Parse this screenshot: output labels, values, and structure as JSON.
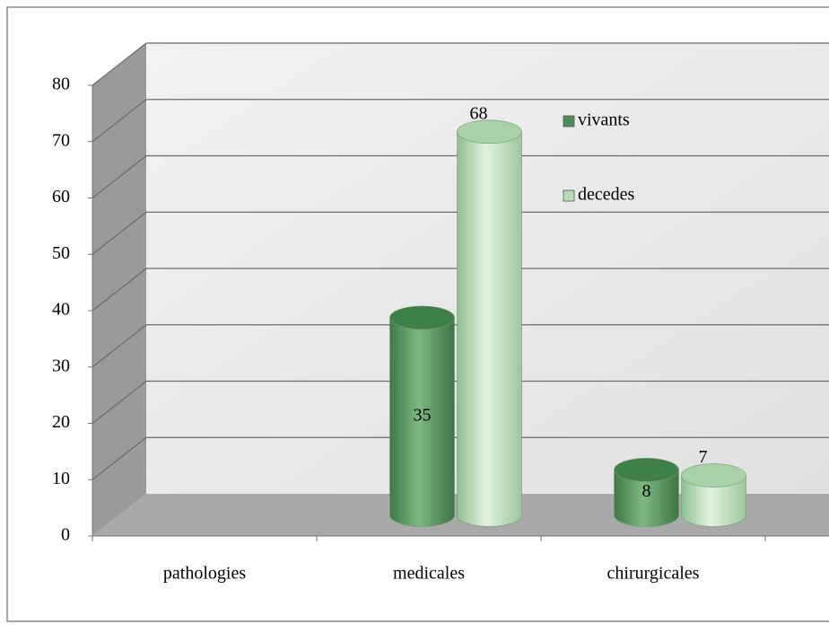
{
  "chart_data": {
    "type": "bar3d",
    "categories": [
      "pathologies",
      "medicales",
      "chirurgicales"
    ],
    "series": [
      {
        "name": "vivants",
        "color": "#4f8f57",
        "values": [
          null,
          35,
          8
        ]
      },
      {
        "name": "decedes",
        "color": "#b5dbb5",
        "values": [
          null,
          68,
          7
        ]
      }
    ],
    "ylim": [
      0,
      80
    ],
    "yticks": [
      0,
      10,
      20,
      30,
      40,
      50,
      60,
      70,
      80
    ],
    "grid": true,
    "legend": "top-right"
  }
}
